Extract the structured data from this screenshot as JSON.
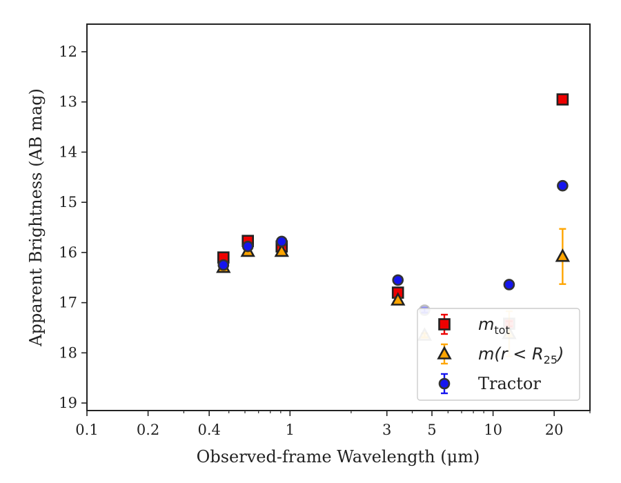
{
  "chart_data": {
    "type": "scatter",
    "title": "",
    "xlabel": "Observed-frame Wavelength (μm)",
    "ylabel": "Apparent Brightness (AB mag)",
    "xscale": "log",
    "xlim": [
      0.1,
      30
    ],
    "ylim": [
      19.15,
      11.45
    ],
    "y_inverted": true,
    "x_ticks": [
      0.1,
      0.2,
      0.4,
      1,
      3,
      5,
      10,
      20
    ],
    "x_tick_labels": [
      "0.1",
      "0.2",
      "0.4",
      "1",
      "3",
      "5",
      "10",
      "20"
    ],
    "y_ticks": [
      12,
      13,
      14,
      15,
      16,
      17,
      18,
      19
    ],
    "y_tick_labels": [
      "12",
      "13",
      "14",
      "15",
      "16",
      "17",
      "18",
      "19"
    ],
    "grid": false,
    "legend_position": "lower-right",
    "series": [
      {
        "name": "m_tot",
        "legend_main": "m",
        "legend_sub": "tot",
        "legend_tail": "",
        "marker": "square",
        "color": "#ee0000",
        "error_color": "#ee0000",
        "points": [
          {
            "x": 0.47,
            "y": 16.1,
            "err": 0.05,
            "faded": false
          },
          {
            "x": 0.62,
            "y": 15.77,
            "err": 0.05,
            "faded": false
          },
          {
            "x": 0.91,
            "y": 15.88,
            "err": 0.05,
            "faded": false
          },
          {
            "x": 3.4,
            "y": 16.8,
            "err": 0.05,
            "faded": false
          },
          {
            "x": 12.0,
            "y": 17.42,
            "err": 0.05,
            "faded": true
          },
          {
            "x": 22.0,
            "y": 12.95,
            "err": 0.04,
            "faded": false
          }
        ]
      },
      {
        "name": "m(r < R25)",
        "legend_main": "m(r < R",
        "legend_sub": "25",
        "legend_tail": ")",
        "marker": "triangle",
        "color": "#ffa500",
        "error_color": "#ffa500",
        "points": [
          {
            "x": 0.47,
            "y": 16.3,
            "err": 0.04,
            "faded": false
          },
          {
            "x": 0.62,
            "y": 15.98,
            "err": 0.04,
            "faded": false
          },
          {
            "x": 0.91,
            "y": 15.98,
            "err": 0.04,
            "faded": false
          },
          {
            "x": 3.4,
            "y": 16.95,
            "err": 0.04,
            "faded": false
          },
          {
            "x": 4.6,
            "y": 17.65,
            "err": 0.04,
            "faded": true
          },
          {
            "x": 12.0,
            "y": 17.62,
            "err": 0.45,
            "faded": true
          },
          {
            "x": 22.0,
            "y": 16.08,
            "err": 0.55,
            "faded": false
          }
        ]
      },
      {
        "name": "Tractor",
        "legend_main": "Tractor",
        "legend_sub": "",
        "legend_tail": "",
        "marker": "circle",
        "color": "#1515ee",
        "error_color": "#1515ee",
        "points": [
          {
            "x": 0.47,
            "y": 16.25,
            "err": 0.05,
            "faded": false
          },
          {
            "x": 0.62,
            "y": 15.88,
            "err": 0.05,
            "faded": false
          },
          {
            "x": 0.91,
            "y": 15.78,
            "err": 0.05,
            "faded": false
          },
          {
            "x": 3.4,
            "y": 16.55,
            "err": 0.05,
            "faded": false
          },
          {
            "x": 4.6,
            "y": 17.15,
            "err": 0.05,
            "faded": true
          },
          {
            "x": 12.0,
            "y": 16.64,
            "err": 0.05,
            "faded": false
          },
          {
            "x": 22.0,
            "y": 14.67,
            "err": 0.05,
            "faded": false
          }
        ]
      }
    ]
  }
}
